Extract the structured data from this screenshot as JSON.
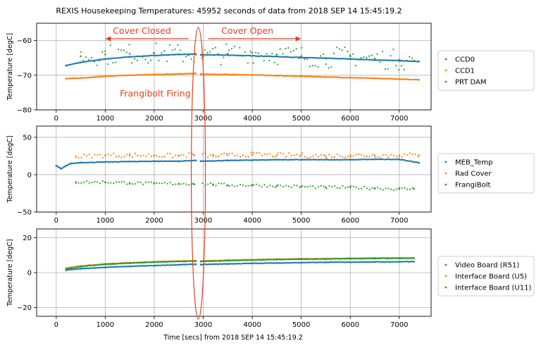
{
  "title": "REXIS Housekeeping Temperatures: 45952 seconds of data from 2018 SEP 14 15:45:19.2",
  "xlabel": "Time [secs] from 2018 SEP 14 15:45:19.2",
  "annotations": {
    "cover_closed": "Cover Closed",
    "cover_open": "Cover Open",
    "frangibolt_firing": "Frangibolt Firing",
    "color": "#e8401c"
  },
  "colors": {
    "blue": "#1f77b4",
    "orange": "#ff7f0e",
    "green": "#2ca02c"
  },
  "chart_data": [
    {
      "type": "scatter",
      "ylabel": "Temperature [degC]",
      "xlim": [
        -400,
        7650
      ],
      "ylim": [
        -80,
        -55
      ],
      "xticks": [
        0,
        1000,
        2000,
        3000,
        4000,
        5000,
        6000,
        7000
      ],
      "yticks": [
        -80,
        -70,
        -60
      ],
      "grid": true,
      "legend_position": "right",
      "series": [
        {
          "name": "CCD0",
          "color": "#1f77b4",
          "x": [
            200,
            500,
            1000,
            1500,
            2000,
            2500,
            2850,
            2950,
            3500,
            4000,
            4500,
            5000,
            5500,
            6000,
            6500,
            7000,
            7400
          ],
          "y": [
            -67.2,
            -66.3,
            -65.3,
            -64.7,
            -64.3,
            -64.0,
            -63.9,
            -64.1,
            -64.2,
            -64.4,
            -64.6,
            -64.9,
            -65.1,
            -65.3,
            -65.6,
            -65.8,
            -66.0
          ]
        },
        {
          "name": "CCD1",
          "color": "#ff7f0e",
          "x": [
            200,
            500,
            1000,
            1500,
            2000,
            2500,
            2850,
            2950,
            3500,
            4000,
            4500,
            5000,
            5500,
            6000,
            6500,
            7000,
            7400
          ],
          "y": [
            -71.0,
            -70.8,
            -70.3,
            -70.0,
            -69.8,
            -69.6,
            -69.5,
            -69.7,
            -69.8,
            -69.9,
            -70.1,
            -70.3,
            -70.5,
            -70.7,
            -70.9,
            -71.1,
            -71.3
          ]
        },
        {
          "name": "PRT DAM",
          "color": "#2ca02c",
          "x": [
            500,
            1000,
            1500,
            2000,
            2500,
            2850,
            3000,
            3500,
            4000,
            4500,
            5000,
            5500,
            6000,
            6500,
            7000,
            7300
          ],
          "y": [
            -64.5,
            -64.0,
            -63.8,
            -63.6,
            -63.9,
            -64.0,
            -64.5,
            -63.8,
            -63.5,
            -64.0,
            -64.5,
            -65.0,
            -64.5,
            -65.2,
            -65.5,
            -65.8
          ],
          "scatter_half_range": 3
        }
      ]
    },
    {
      "type": "scatter",
      "ylabel": "Temperature [degC]",
      "xlim": [
        -400,
        7650
      ],
      "ylim": [
        -50,
        65
      ],
      "xticks": [
        0,
        1000,
        2000,
        3000,
        4000,
        5000,
        6000,
        7000
      ],
      "yticks": [
        -50,
        0,
        50
      ],
      "grid": true,
      "legend_position": "right",
      "series": [
        {
          "name": "MEB_Temp",
          "color": "#1f77b4",
          "x": [
            0,
            100,
            200,
            300,
            500,
            1000,
            1500,
            2000,
            2500,
            2850,
            2950,
            3500,
            4000,
            4500,
            5000,
            5500,
            6000,
            6500,
            7000,
            7400
          ],
          "y": [
            12,
            8,
            12,
            15,
            16,
            17,
            17.5,
            18,
            18,
            19,
            18,
            19,
            19.5,
            20,
            20,
            20,
            20,
            20.5,
            20.5,
            16
          ]
        },
        {
          "name": "Rad Cover",
          "color": "#ff7f0e",
          "x": [
            400,
            1000,
            1500,
            2000,
            2500,
            2800,
            3200,
            3500,
            4000,
            4500,
            5000,
            5500,
            6000,
            6500,
            7000,
            7400
          ],
          "y": [
            24,
            26,
            26,
            26,
            25,
            27,
            25,
            26,
            27,
            26,
            26,
            25,
            26,
            26,
            26,
            26
          ],
          "scatter_half_range": 3
        },
        {
          "name": "FrangiBolt",
          "color": "#2ca02c",
          "x": [
            400,
            1000,
            1500,
            2000,
            2500,
            2800,
            3200,
            3500,
            4000,
            4500,
            5000,
            5500,
            6000,
            6500,
            7000,
            7300
          ],
          "y": [
            -10,
            -10,
            -11,
            -12,
            -12,
            -12,
            -13,
            -14,
            -14,
            -15,
            -16,
            -17,
            -17,
            -18,
            -19,
            -19
          ],
          "scatter_half_range": 2
        }
      ]
    },
    {
      "type": "scatter",
      "ylabel": "Temperature [degC]",
      "xlim": [
        -400,
        7650
      ],
      "ylim": [
        -25,
        25
      ],
      "xticks": [
        0,
        1000,
        2000,
        3000,
        4000,
        5000,
        6000,
        7000
      ],
      "yticks": [
        -20,
        0,
        20
      ],
      "grid": true,
      "legend_position": "right",
      "series": [
        {
          "name": "Video Board (R51)",
          "color": "#1f77b4",
          "x": [
            200,
            500,
            1000,
            1500,
            2000,
            2500,
            2850,
            2950,
            3500,
            4000,
            4500,
            5000,
            5500,
            6000,
            6500,
            7000,
            7300
          ],
          "y": [
            1.5,
            2.2,
            3.0,
            3.6,
            4.0,
            4.5,
            4.8,
            4.6,
            5.0,
            5.3,
            5.5,
            5.7,
            5.9,
            6.0,
            6.1,
            6.2,
            6.3
          ]
        },
        {
          "name": "Interface Board (U5)",
          "color": "#ff7f0e",
          "x": [
            200,
            500,
            1000,
            1500,
            2000,
            2500,
            2850,
            2950,
            3500,
            4000,
            4500,
            5000,
            5500,
            6000,
            6500,
            7000,
            7300
          ],
          "y": [
            2.5,
            3.8,
            5.0,
            5.7,
            6.2,
            6.6,
            6.8,
            6.6,
            7.1,
            7.4,
            7.7,
            7.9,
            8.0,
            8.2,
            8.3,
            8.4,
            8.4
          ]
        },
        {
          "name": "Interface Board (U11)",
          "color": "#2ca02c",
          "x": [
            200,
            500,
            1000,
            1500,
            2000,
            2500,
            2850,
            2950,
            3500,
            4000,
            4500,
            5000,
            5500,
            6000,
            6500,
            7000,
            7300
          ],
          "y": [
            2.0,
            3.5,
            4.7,
            5.4,
            6.0,
            6.4,
            6.6,
            6.4,
            6.9,
            7.2,
            7.5,
            7.7,
            7.8,
            8.0,
            8.1,
            8.2,
            8.2
          ]
        }
      ]
    }
  ]
}
